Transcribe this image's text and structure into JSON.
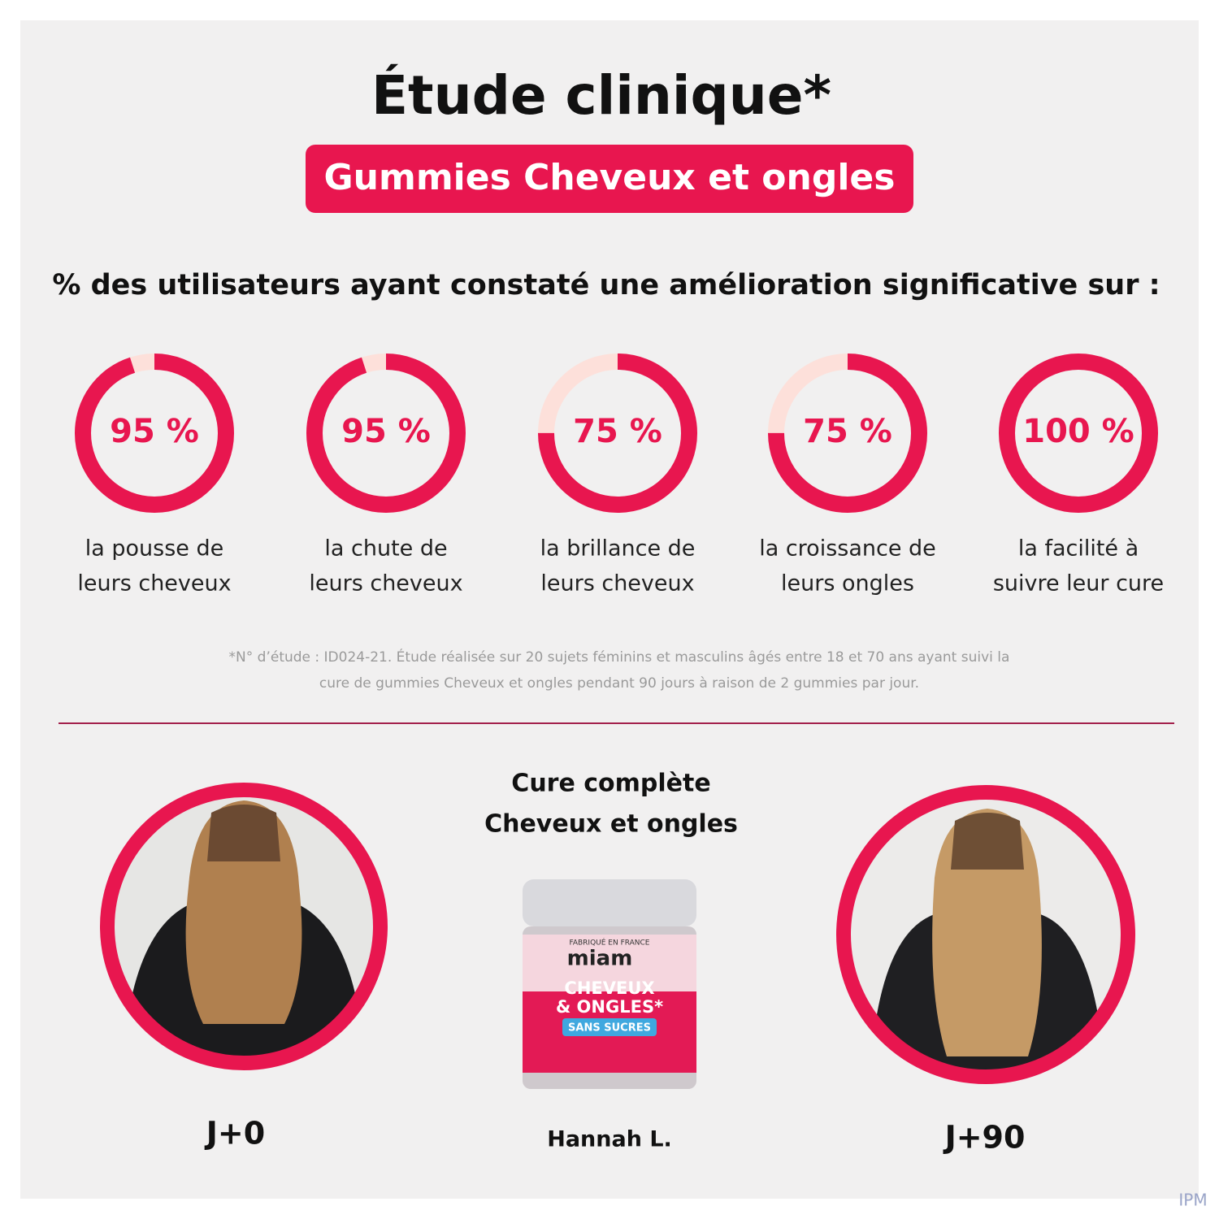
{
  "title": "Étude clinique*",
  "subtitle": "Gummies Cheveux et ongles",
  "intro": "% des utilisateurs ayant constaté une amélioration significative sur :",
  "stats": [
    {
      "value": 95,
      "value_label": "95 %",
      "label_lines": [
        "la pousse de",
        "leurs cheveux"
      ]
    },
    {
      "value": 95,
      "value_label": "95 %",
      "label_lines": [
        "la chute de",
        "leurs cheveux"
      ]
    },
    {
      "value": 75,
      "value_label": "75 %",
      "label_lines": [
        "la brillance de",
        "leurs cheveux"
      ]
    },
    {
      "value": 75,
      "value_label": "75 %",
      "label_lines": [
        "la croissance de",
        "leurs ongles"
      ]
    },
    {
      "value": 100,
      "value_label": "100 %",
      "label_lines": [
        "la facilité à",
        "suivre leur cure"
      ]
    }
  ],
  "footnote_lines": [
    "*N° d’étude : ID024-21. Étude réalisée sur 20 sujets féminins et masculins âgés entre 18 et 70 ans ayant suivi la",
    "cure de gummies Cheveux et ongles pendant 90 jours à raison de 2 gummies par jour."
  ],
  "comparison": {
    "title_lines": [
      "Cure complète",
      "Cheveux et ongles"
    ],
    "before": "J+0",
    "after": "J+90",
    "name": "Hannah L.",
    "jar": {
      "brand": "miam",
      "origin": "FABRIQUÉ EN FRANCE",
      "product_lines": [
        "CHEVEUX",
        "& ONGLES*"
      ],
      "badge": "SANS SUCRES"
    }
  },
  "watermark": "IPM"
}
